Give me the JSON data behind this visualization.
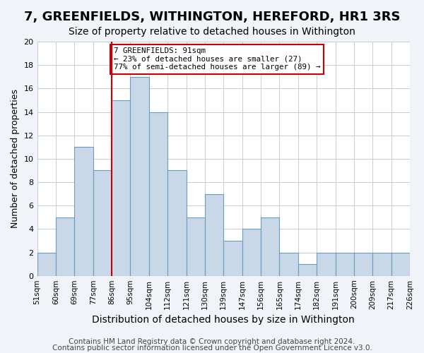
{
  "title": "7, GREENFIELDS, WITHINGTON, HEREFORD, HR1 3RS",
  "subtitle": "Size of property relative to detached houses in Withington",
  "xlabel": "Distribution of detached houses by size in Withington",
  "ylabel": "Number of detached properties",
  "bin_labels": [
    "51sqm",
    "60sqm",
    "69sqm",
    "77sqm",
    "86sqm",
    "95sqm",
    "104sqm",
    "112sqm",
    "121sqm",
    "130sqm",
    "139sqm",
    "147sqm",
    "156sqm",
    "165sqm",
    "174sqm",
    "182sqm",
    "191sqm",
    "200sqm",
    "209sqm",
    "217sqm",
    "226sqm"
  ],
  "bar_values": [
    2,
    5,
    11,
    9,
    15,
    17,
    14,
    9,
    5,
    7,
    3,
    4,
    5,
    2,
    1,
    2,
    2,
    2,
    2,
    2
  ],
  "ylim": [
    0,
    20
  ],
  "yticks": [
    0,
    2,
    4,
    6,
    8,
    10,
    12,
    14,
    16,
    18,
    20
  ],
  "bar_color": "#c8d8e8",
  "bar_edge_color": "#6a9cbf",
  "vline_color": "#cc0000",
  "annotation_text": "7 GREENFIELDS: 91sqm\n← 23% of detached houses are smaller (27)\n77% of semi-detached houses are larger (89) →",
  "annotation_box_color": "white",
  "annotation_box_edge_color": "#cc0000",
  "footer_line1": "Contains HM Land Registry data © Crown copyright and database right 2024.",
  "footer_line2": "Contains public sector information licensed under the Open Government Licence v3.0.",
  "background_color": "#f0f4f8",
  "plot_background_color": "white",
  "grid_color": "#c8cdd3",
  "title_fontsize": 13,
  "subtitle_fontsize": 10,
  "xlabel_fontsize": 10,
  "ylabel_fontsize": 9,
  "footer_fontsize": 7.5
}
